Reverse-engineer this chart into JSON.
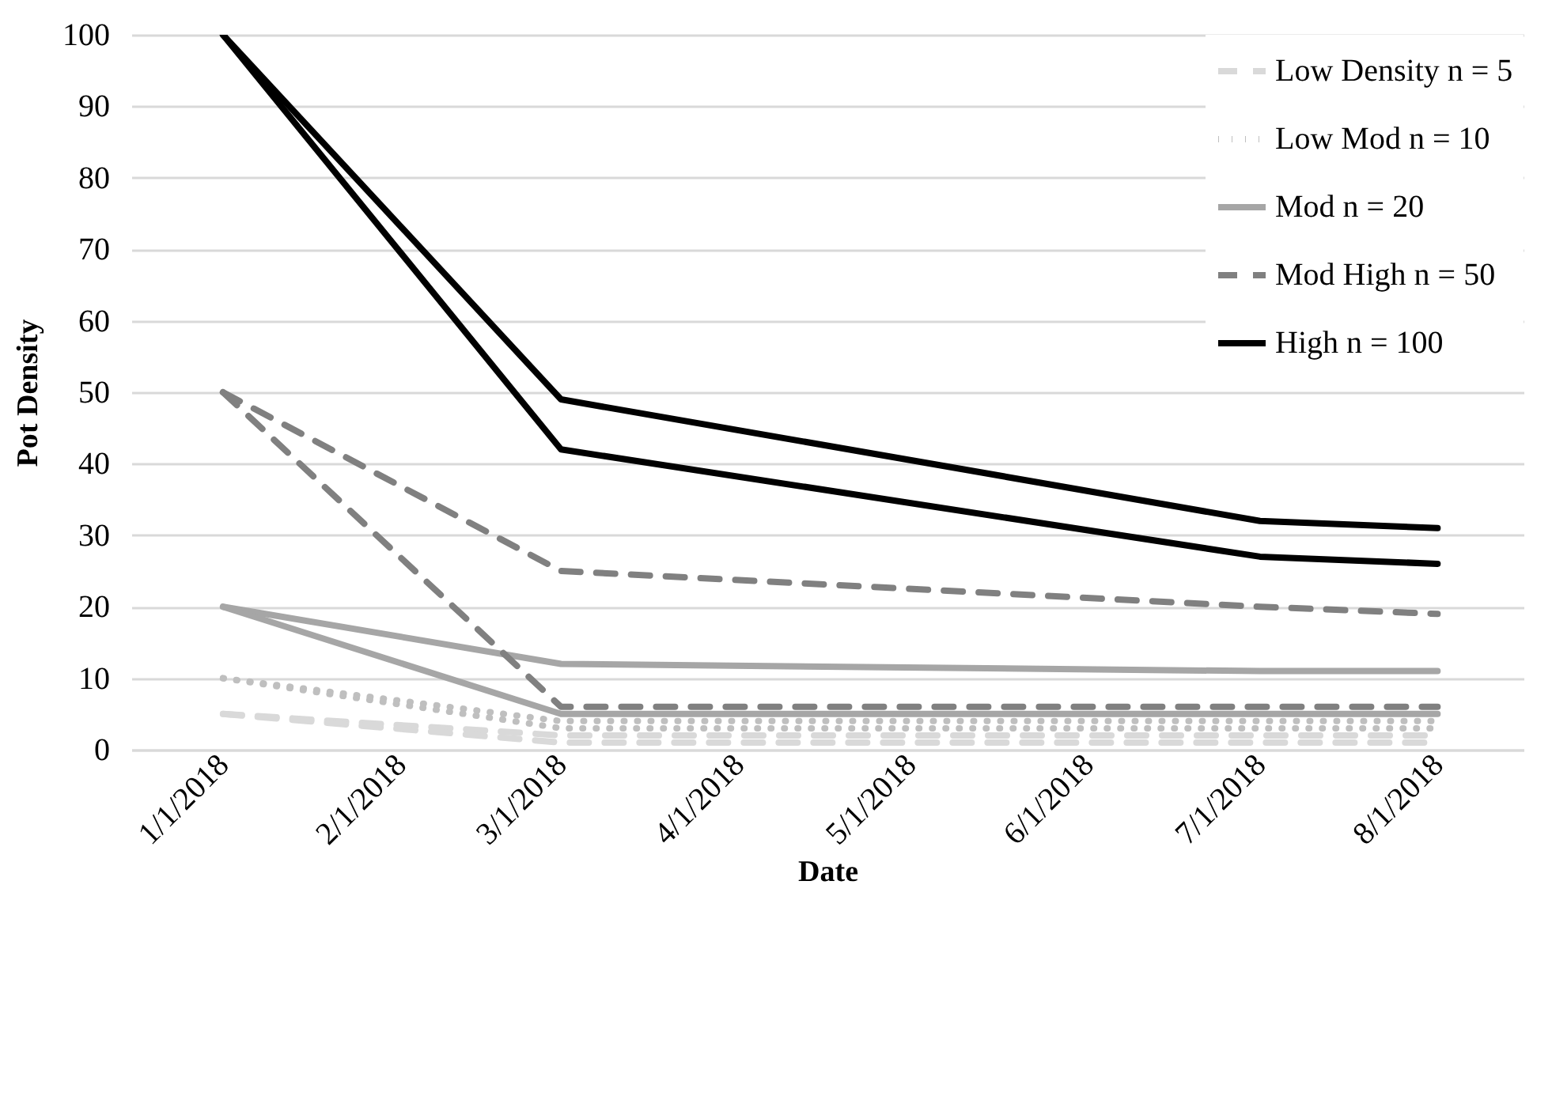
{
  "chart_data": {
    "type": "line",
    "xlabel": "Date",
    "ylabel": "Pot Density",
    "x": [
      "2018-01-01",
      "2018-03-01",
      "2018-07-01",
      "2018-08-01"
    ],
    "xlim": [
      "2017-12-16",
      "2018-08-16"
    ],
    "xticks": [
      {
        "value": "2018-01-01",
        "label": "1/1/2018"
      },
      {
        "value": "2018-02-01",
        "label": "2/1/2018"
      },
      {
        "value": "2018-03-01",
        "label": "3/1/2018"
      },
      {
        "value": "2018-04-01",
        "label": "4/1/2018"
      },
      {
        "value": "2018-05-01",
        "label": "5/1/2018"
      },
      {
        "value": "2018-06-01",
        "label": "6/1/2018"
      },
      {
        "value": "2018-07-01",
        "label": "7/1/2018"
      },
      {
        "value": "2018-08-01",
        "label": "8/1/2018"
      }
    ],
    "ylim": [
      0,
      100
    ],
    "yticks": [
      0,
      10,
      20,
      30,
      40,
      50,
      60,
      70,
      80,
      90,
      100
    ],
    "grid": "y",
    "legend": "top right",
    "marker": "none",
    "series": [
      {
        "name": "Low Density n = 5",
        "color": "#d9d9d9",
        "line_style": "dashed",
        "values": [
          5,
          2,
          2,
          2
        ]
      },
      {
        "color": "#d9d9d9",
        "line_style": "dashed",
        "values": [
          5,
          1,
          1,
          1
        ]
      },
      {
        "name": "Low Mod n = 10",
        "color": "#bfbfbf",
        "line_style": "dotted",
        "values": [
          10,
          4,
          4,
          4
        ]
      },
      {
        "color": "#bfbfbf",
        "line_style": "dotted",
        "values": [
          10,
          3,
          3,
          3
        ]
      },
      {
        "name": "Mod n = 20",
        "color": "#a6a6a6",
        "line_style": "solid",
        "values": [
          20,
          12,
          11,
          11
        ]
      },
      {
        "color": "#a6a6a6",
        "line_style": "solid",
        "values": [
          20,
          5,
          5,
          5
        ]
      },
      {
        "name": "Mod High n = 50",
        "color": "#808080",
        "line_style": "dashed",
        "values": [
          50,
          25,
          20,
          19
        ]
      },
      {
        "color": "#808080",
        "line_style": "dashed",
        "values": [
          50,
          6,
          6,
          6
        ]
      },
      {
        "name": "High n = 100",
        "color": "#000000",
        "line_style": "solid",
        "values": [
          100,
          49,
          32,
          31
        ]
      },
      {
        "color": "#000000",
        "line_style": "solid",
        "values": [
          100,
          42,
          27,
          26
        ]
      }
    ]
  }
}
